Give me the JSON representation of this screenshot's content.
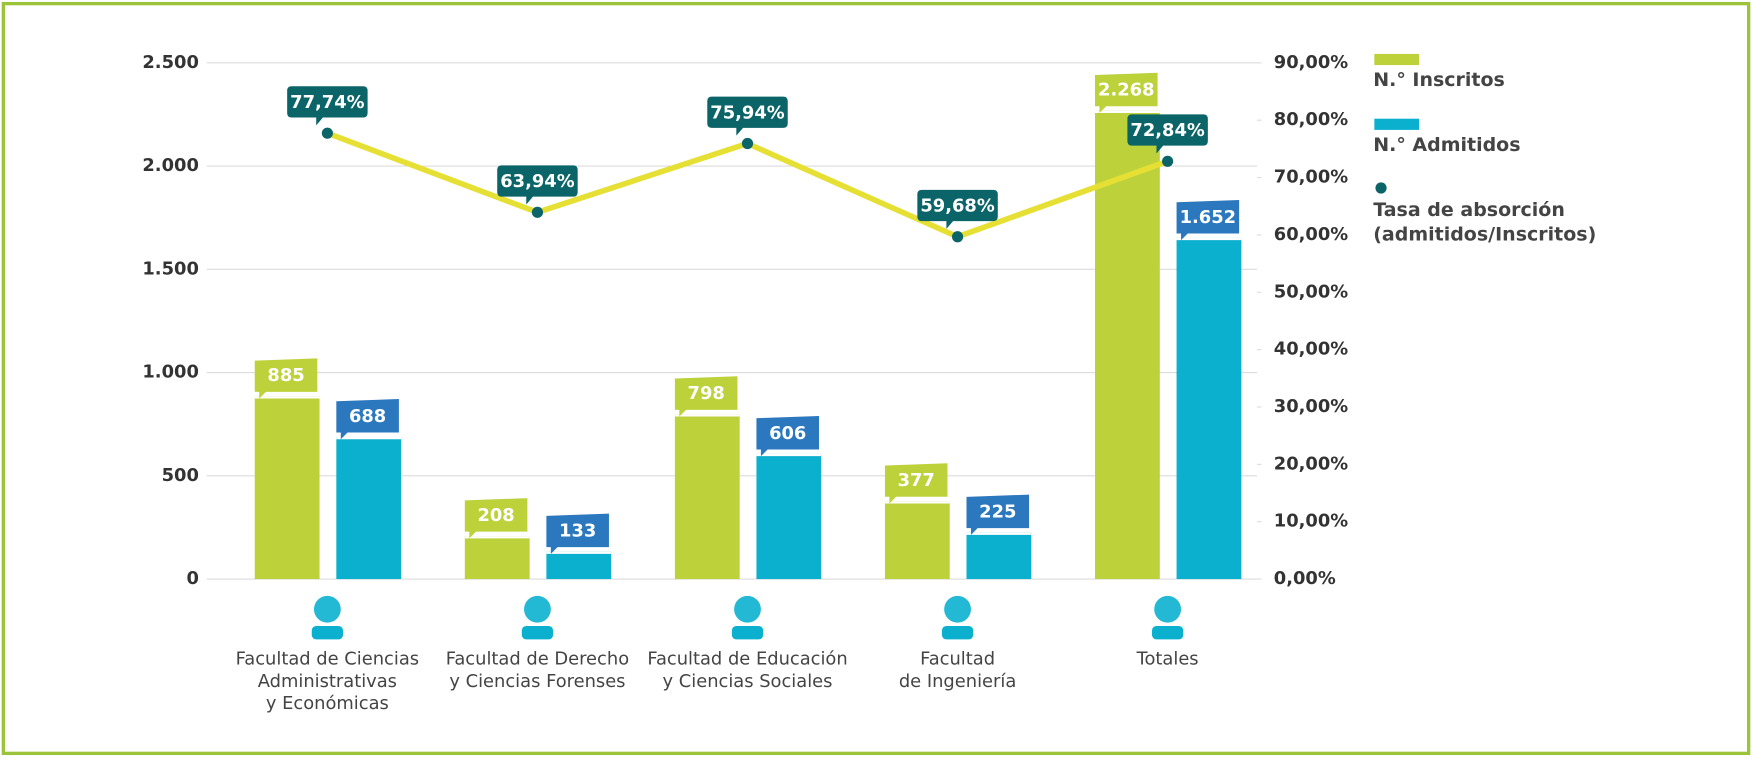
{
  "chart_data": {
    "type": "bar",
    "categories": [
      [
        "Facultad de Ciencias",
        "Administrativas",
        "y Económicas"
      ],
      [
        "Facultad de Derecho",
        "y Ciencias Forenses"
      ],
      [
        "Facultad de Educación",
        "y Ciencias Sociales"
      ],
      [
        "Facultad",
        "de Ingeniería"
      ],
      [
        "Totales"
      ]
    ],
    "series": [
      {
        "name": "N.° Inscritos",
        "color": "#bdd23a",
        "label_color": "#bdd23a",
        "values": [
          885,
          208,
          798,
          377,
          2268
        ],
        "value_labels": [
          "885",
          "208",
          "798",
          "377",
          "2.268"
        ]
      },
      {
        "name": "N.° Admitidos",
        "color": "#0bb0cf",
        "label_color": "#2b78bf",
        "values": [
          688,
          133,
          606,
          225,
          1652
        ],
        "value_labels": [
          "688",
          "133",
          "606",
          "225",
          "1.652"
        ]
      },
      {
        "name": "Tasa de absorción (admitidos/Inscritos)",
        "type": "line",
        "axis": "y2",
        "color": "#e6e035",
        "marker_color": "#0b6468",
        "values": [
          77.74,
          63.94,
          75.94,
          59.68,
          72.84
        ],
        "value_labels": [
          "77,74%",
          "63,94%",
          "75,94%",
          "59,68%",
          "72,84%"
        ]
      }
    ],
    "ylim": [
      0,
      2500
    ],
    "yticks": [
      0,
      500,
      {
        "value": 1000,
        "label": "1.000"
      },
      {
        "value": 1500,
        "label": "1.500"
      },
      {
        "value": 2000,
        "label": "2.000"
      },
      {
        "value": 2500,
        "label": "2.500"
      }
    ],
    "y2lim": [
      0,
      90
    ],
    "y2ticks": [
      {
        "value": 0,
        "label": "0,00%"
      },
      {
        "value": 10,
        "label": "10,00%"
      },
      {
        "value": 20,
        "label": "20,00%"
      },
      {
        "value": 30,
        "label": "30,00%"
      },
      {
        "value": 40,
        "label": "40,00%"
      },
      {
        "value": 50,
        "label": "50,00%"
      },
      {
        "value": 60,
        "label": "60,00%"
      },
      {
        "value": 70,
        "label": "70,00%"
      },
      {
        "value": 80,
        "label": "80,00%"
      },
      {
        "value": 90,
        "label": "90,00%"
      }
    ],
    "grid": true,
    "legend": "right"
  }
}
